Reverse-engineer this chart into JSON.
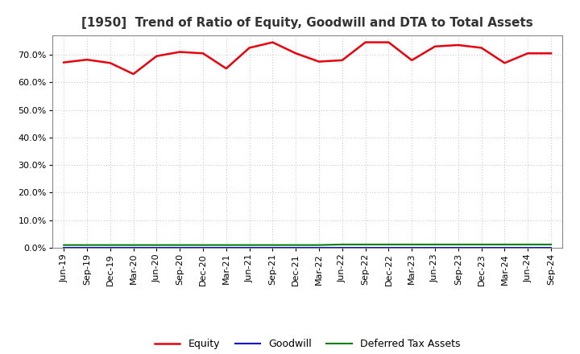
{
  "title": "[1950]  Trend of Ratio of Equity, Goodwill and DTA to Total Assets",
  "x_labels": [
    "Jun-19",
    "Sep-19",
    "Dec-19",
    "Mar-20",
    "Jun-20",
    "Sep-20",
    "Dec-20",
    "Mar-21",
    "Jun-21",
    "Sep-21",
    "Dec-21",
    "Mar-22",
    "Jun-22",
    "Sep-22",
    "Dec-22",
    "Mar-23",
    "Jun-23",
    "Sep-23",
    "Dec-23",
    "Mar-24",
    "Jun-24",
    "Sep-24"
  ],
  "equity": [
    67.2,
    68.2,
    67.0,
    63.0,
    69.5,
    71.0,
    70.5,
    65.0,
    72.5,
    74.5,
    70.5,
    67.5,
    68.0,
    74.5,
    74.5,
    68.0,
    73.0,
    73.5,
    72.5,
    67.0,
    70.5,
    70.5
  ],
  "goodwill": [
    0.0,
    0.0,
    0.0,
    0.0,
    0.0,
    0.0,
    0.0,
    0.0,
    0.0,
    0.0,
    0.0,
    0.0,
    0.0,
    0.0,
    0.0,
    0.0,
    0.0,
    0.0,
    0.0,
    0.0,
    0.0,
    0.0
  ],
  "dta": [
    1.0,
    1.0,
    1.0,
    1.0,
    1.0,
    1.0,
    1.0,
    1.0,
    1.0,
    1.0,
    1.0,
    1.0,
    1.2,
    1.2,
    1.2,
    1.2,
    1.2,
    1.2,
    1.2,
    1.2,
    1.2,
    1.2
  ],
  "equity_color": "#e8000d",
  "goodwill_color": "#0000cc",
  "dta_color": "#008000",
  "ylim": [
    0,
    77
  ],
  "yticks": [
    0,
    10,
    20,
    30,
    40,
    50,
    60,
    70
  ],
  "background_color": "#ffffff",
  "grid_color": "#aaaaaa",
  "title_fontsize": 11,
  "tick_fontsize": 8,
  "legend_fontsize": 9
}
